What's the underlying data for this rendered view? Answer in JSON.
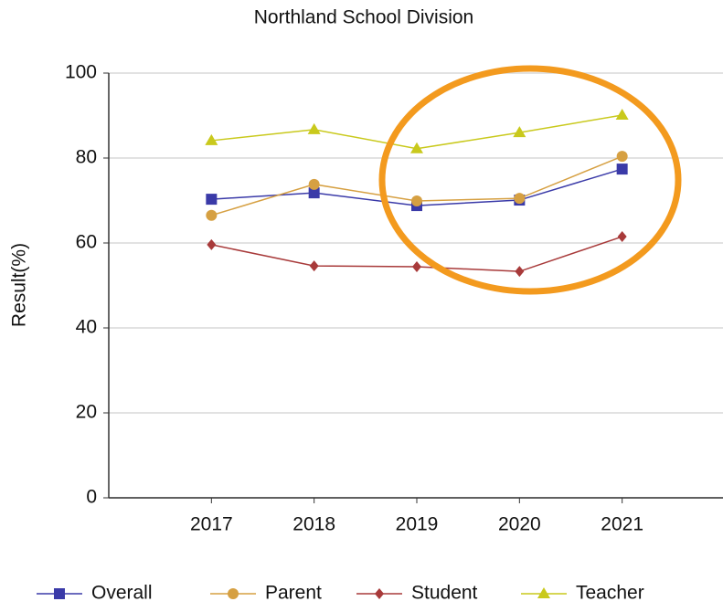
{
  "chart_data": {
    "type": "line",
    "title": "Northland School Division",
    "y_label": "Result(%)",
    "x": [
      2017,
      2018,
      2019,
      2020,
      2021
    ],
    "xlim": [
      2016,
      2022
    ],
    "xticks": [
      2017,
      2018,
      2019,
      2020,
      2021
    ],
    "ylim": [
      0,
      100
    ],
    "yticks": [
      0,
      20,
      40,
      60,
      80,
      100
    ],
    "grid": true,
    "series": [
      {
        "name": "Overall",
        "color": "#3a3aa8",
        "marker": "square",
        "values": [
          70.3,
          71.8,
          68.8,
          70.1,
          77.4
        ]
      },
      {
        "name": "Parent",
        "color": "#d6a042",
        "marker": "circle",
        "values": [
          66.5,
          73.8,
          69.9,
          70.5,
          80.4
        ]
      },
      {
        "name": "Student",
        "color": "#a83a3a",
        "marker": "diamond",
        "values": [
          59.6,
          54.6,
          54.4,
          53.3,
          61.5
        ]
      },
      {
        "name": "Teacher",
        "color": "#c9c91c",
        "marker": "triangle",
        "values": [
          84.1,
          86.7,
          82.2,
          86.0,
          90.1
        ]
      }
    ]
  }
}
